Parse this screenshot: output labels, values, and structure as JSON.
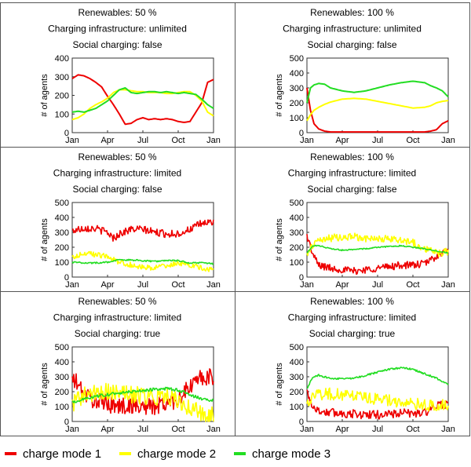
{
  "colors": {
    "charge_mode_1": "#ee0000",
    "charge_mode_2": "#ffff00",
    "charge_mode_3": "#22dd22",
    "grid_border": "#555555"
  },
  "legend": {
    "items": [
      {
        "label": "charge mode 1",
        "color": "#ee0000"
      },
      {
        "label": "charge mode 2",
        "color": "#ffff00"
      },
      {
        "label": "charge mode 3",
        "color": "#22dd22"
      }
    ]
  },
  "chart_data": [
    {
      "type": "line",
      "title_lines": [
        "Renewables: 50 %",
        "Charging infrastructure: unlimited",
        "Social charging: false"
      ],
      "ylabel": "# of agents",
      "yticks": [
        0,
        100,
        200,
        300,
        400
      ],
      "ylim": [
        0,
        400
      ],
      "xlim": [
        0,
        12
      ],
      "xticks": [
        0,
        3,
        6,
        9,
        12
      ],
      "xtick_labels": [
        "Jan",
        "Apr",
        "Jul",
        "Oct",
        "Jan"
      ],
      "noise": [
        0,
        0,
        0
      ],
      "series": [
        {
          "x": [
            0,
            0.5,
            1,
            1.5,
            2,
            2.5,
            3,
            3.5,
            4,
            4.5,
            5,
            5.5,
            6,
            6.5,
            7,
            7.5,
            8,
            8.5,
            9,
            9.5,
            10,
            10.5,
            11,
            11.5,
            12
          ],
          "values": [
            290,
            310,
            305,
            290,
            270,
            245,
            195,
            150,
            100,
            45,
            50,
            70,
            80,
            70,
            75,
            70,
            75,
            70,
            60,
            55,
            60,
            110,
            160,
            270,
            285
          ]
        },
        {
          "x": [
            0,
            0.5,
            1,
            1.5,
            2,
            2.5,
            3,
            3.5,
            4,
            4.5,
            5,
            5.5,
            6,
            6.5,
            7,
            7.5,
            8,
            8.5,
            9,
            9.5,
            10,
            10.5,
            11,
            11.5,
            12
          ],
          "values": [
            70,
            80,
            100,
            130,
            150,
            165,
            185,
            215,
            230,
            230,
            225,
            220,
            220,
            215,
            215,
            215,
            210,
            210,
            215,
            220,
            220,
            200,
            170,
            110,
            90
          ]
        },
        {
          "x": [
            0,
            0.5,
            1,
            1.5,
            2,
            2.5,
            3,
            3.5,
            4,
            4.5,
            5,
            5.5,
            6,
            6.5,
            7,
            7.5,
            8,
            8.5,
            9,
            9.5,
            10,
            10.5,
            11,
            11.5,
            12
          ],
          "values": [
            110,
            115,
            110,
            120,
            130,
            150,
            170,
            200,
            230,
            240,
            215,
            210,
            215,
            220,
            220,
            215,
            220,
            215,
            210,
            215,
            210,
            205,
            180,
            150,
            130
          ]
        }
      ]
    },
    {
      "type": "line",
      "title_lines": [
        "Renewables: 100 %",
        "Charging infrastructure: unlimited",
        "Social charging: false"
      ],
      "ylabel": "# of agents",
      "yticks": [
        0,
        100,
        200,
        300,
        400,
        500
      ],
      "ylim": [
        0,
        500
      ],
      "xlim": [
        0,
        12
      ],
      "xticks": [
        0,
        3,
        6,
        9,
        12
      ],
      "xtick_labels": [
        "Jan",
        "Apr",
        "Jul",
        "Oct",
        "Jan"
      ],
      "noise": [
        0,
        0,
        0
      ],
      "series": [
        {
          "x": [
            0,
            0.3,
            0.6,
            1,
            1.5,
            2,
            3,
            4,
            5,
            6,
            7,
            8,
            9,
            10,
            10.5,
            11,
            11.5,
            12
          ],
          "values": [
            300,
            150,
            60,
            25,
            10,
            5,
            5,
            5,
            5,
            5,
            5,
            5,
            5,
            5,
            10,
            20,
            60,
            80
          ]
        },
        {
          "x": [
            0,
            0.3,
            0.6,
            1,
            1.5,
            2,
            3,
            4,
            5,
            6,
            7,
            8,
            9,
            10,
            10.5,
            11,
            11.5,
            12
          ],
          "values": [
            80,
            120,
            150,
            170,
            190,
            205,
            225,
            230,
            225,
            210,
            195,
            180,
            165,
            170,
            180,
            200,
            210,
            215
          ]
        },
        {
          "x": [
            0,
            0.3,
            0.6,
            1,
            1.5,
            2,
            3,
            4,
            5,
            6,
            7,
            8,
            9,
            10,
            10.5,
            11,
            11.5,
            12
          ],
          "values": [
            200,
            300,
            320,
            330,
            325,
            300,
            280,
            270,
            280,
            300,
            320,
            335,
            345,
            335,
            315,
            300,
            280,
            240
          ]
        }
      ]
    },
    {
      "type": "line",
      "title_lines": [
        "Renewables: 50 %",
        "Charging infrastructure: limited",
        "Social charging: false"
      ],
      "ylabel": "# of agents",
      "yticks": [
        0,
        100,
        200,
        300,
        400,
        500
      ],
      "ylim": [
        0,
        500
      ],
      "xlim": [
        0,
        12
      ],
      "xticks": [
        0,
        3,
        6,
        9,
        12
      ],
      "xtick_labels": [
        "Jan",
        "Apr",
        "Jul",
        "Oct",
        "Jan"
      ],
      "noise": [
        25,
        18,
        5
      ],
      "series": [
        {
          "x": [
            0,
            1,
            2,
            3,
            3.5,
            4,
            5,
            6,
            7,
            8,
            9,
            10,
            11,
            12
          ],
          "values": [
            310,
            330,
            325,
            300,
            260,
            290,
            320,
            320,
            300,
            290,
            290,
            320,
            360,
            370
          ]
        },
        {
          "x": [
            0,
            1,
            2,
            3,
            4,
            5,
            6,
            7,
            8,
            9,
            10,
            11,
            12
          ],
          "values": [
            130,
            160,
            150,
            140,
            100,
            80,
            70,
            60,
            80,
            90,
            80,
            60,
            50
          ]
        },
        {
          "x": [
            0,
            1,
            2,
            3,
            4,
            5,
            6,
            7,
            8,
            9,
            10,
            11,
            12
          ],
          "values": [
            100,
            95,
            95,
            100,
            115,
            115,
            110,
            105,
            110,
            110,
            95,
            95,
            90
          ]
        }
      ]
    },
    {
      "type": "line",
      "title_lines": [
        "Renewables: 100 %",
        "Charging infrastructure: limited",
        "Social charging: false"
      ],
      "ylabel": "# of agents",
      "yticks": [
        0,
        100,
        200,
        300,
        400,
        500
      ],
      "ylim": [
        0,
        500
      ],
      "xlim": [
        0,
        12
      ],
      "xticks": [
        0,
        3,
        6,
        9,
        12
      ],
      "xtick_labels": [
        "Jan",
        "Apr",
        "Jul",
        "Oct",
        "Jan"
      ],
      "noise": [
        25,
        25,
        4
      ],
      "series": [
        {
          "x": [
            0,
            0.5,
            1,
            2,
            3,
            4,
            5,
            6,
            7,
            8,
            9,
            10,
            11,
            12
          ],
          "values": [
            280,
            150,
            80,
            60,
            50,
            40,
            50,
            60,
            70,
            80,
            80,
            90,
            140,
            180
          ]
        },
        {
          "x": [
            0,
            0.5,
            1,
            2,
            3,
            4,
            5,
            6,
            7,
            8,
            9,
            10,
            11,
            12
          ],
          "values": [
            150,
            220,
            250,
            260,
            270,
            270,
            260,
            250,
            260,
            250,
            230,
            190,
            160,
            170
          ]
        },
        {
          "x": [
            0,
            0.5,
            1,
            2,
            3,
            4,
            5,
            6,
            7,
            8,
            9,
            10,
            11,
            12
          ],
          "values": [
            160,
            210,
            210,
            190,
            180,
            185,
            190,
            200,
            205,
            210,
            200,
            190,
            175,
            160
          ]
        }
      ]
    },
    {
      "type": "line",
      "title_lines": [
        "Renewables: 50 %",
        "Charging infrastructure: limited",
        "Social charging: true"
      ],
      "ylabel": "# of agents",
      "yticks": [
        0,
        100,
        200,
        300,
        400,
        500
      ],
      "ylim": [
        0,
        500
      ],
      "xlim": [
        0,
        12
      ],
      "xticks": [
        0,
        3,
        6,
        9,
        12
      ],
      "xtick_labels": [
        "Jan",
        "Apr",
        "Jul",
        "Oct",
        "Jan"
      ],
      "noise": [
        60,
        60,
        10
      ],
      "series": [
        {
          "x": [
            0,
            0.5,
            1,
            2,
            3,
            4,
            5,
            6,
            7,
            8,
            9,
            10,
            11,
            12
          ],
          "values": [
            280,
            250,
            180,
            140,
            120,
            100,
            110,
            100,
            100,
            120,
            150,
            230,
            300,
            290
          ]
        },
        {
          "x": [
            0,
            0.5,
            1,
            2,
            3,
            4,
            5,
            6,
            7,
            8,
            9,
            10,
            11,
            12
          ],
          "values": [
            120,
            150,
            170,
            190,
            200,
            190,
            180,
            170,
            160,
            180,
            140,
            90,
            60,
            50
          ]
        },
        {
          "x": [
            0,
            0.5,
            1,
            2,
            3,
            4,
            5,
            6,
            7,
            8,
            9,
            10,
            11,
            12
          ],
          "values": [
            130,
            140,
            150,
            170,
            180,
            190,
            200,
            210,
            215,
            220,
            210,
            180,
            150,
            140
          ]
        }
      ]
    },
    {
      "type": "line",
      "title_lines": [
        "Renewables: 100 %",
        "Charging infrastructure: limited",
        "Social charging: true"
      ],
      "ylabel": "# of agents",
      "yticks": [
        0,
        100,
        200,
        300,
        400,
        500
      ],
      "ylim": [
        0,
        500
      ],
      "xlim": [
        0,
        12
      ],
      "xticks": [
        0,
        3,
        6,
        9,
        12
      ],
      "xtick_labels": [
        "Jan",
        "Apr",
        "Jul",
        "Oct",
        "Jan"
      ],
      "noise": [
        30,
        40,
        6
      ],
      "series": [
        {
          "x": [
            0,
            0.5,
            1,
            2,
            3,
            4,
            5,
            6,
            7,
            8,
            9,
            10,
            11,
            12
          ],
          "values": [
            200,
            100,
            70,
            60,
            55,
            50,
            45,
            45,
            50,
            55,
            55,
            60,
            100,
            120
          ]
        },
        {
          "x": [
            0,
            0.5,
            1,
            2,
            3,
            4,
            5,
            6,
            7,
            8,
            9,
            10,
            11,
            12
          ],
          "values": [
            100,
            170,
            180,
            185,
            180,
            170,
            160,
            150,
            140,
            130,
            120,
            110,
            110,
            120
          ]
        },
        {
          "x": [
            0,
            0.5,
            1,
            2,
            3,
            4,
            5,
            6,
            7,
            8,
            9,
            10,
            11,
            12
          ],
          "values": [
            220,
            300,
            310,
            290,
            285,
            290,
            310,
            330,
            350,
            360,
            350,
            320,
            290,
            250
          ]
        }
      ]
    }
  ]
}
